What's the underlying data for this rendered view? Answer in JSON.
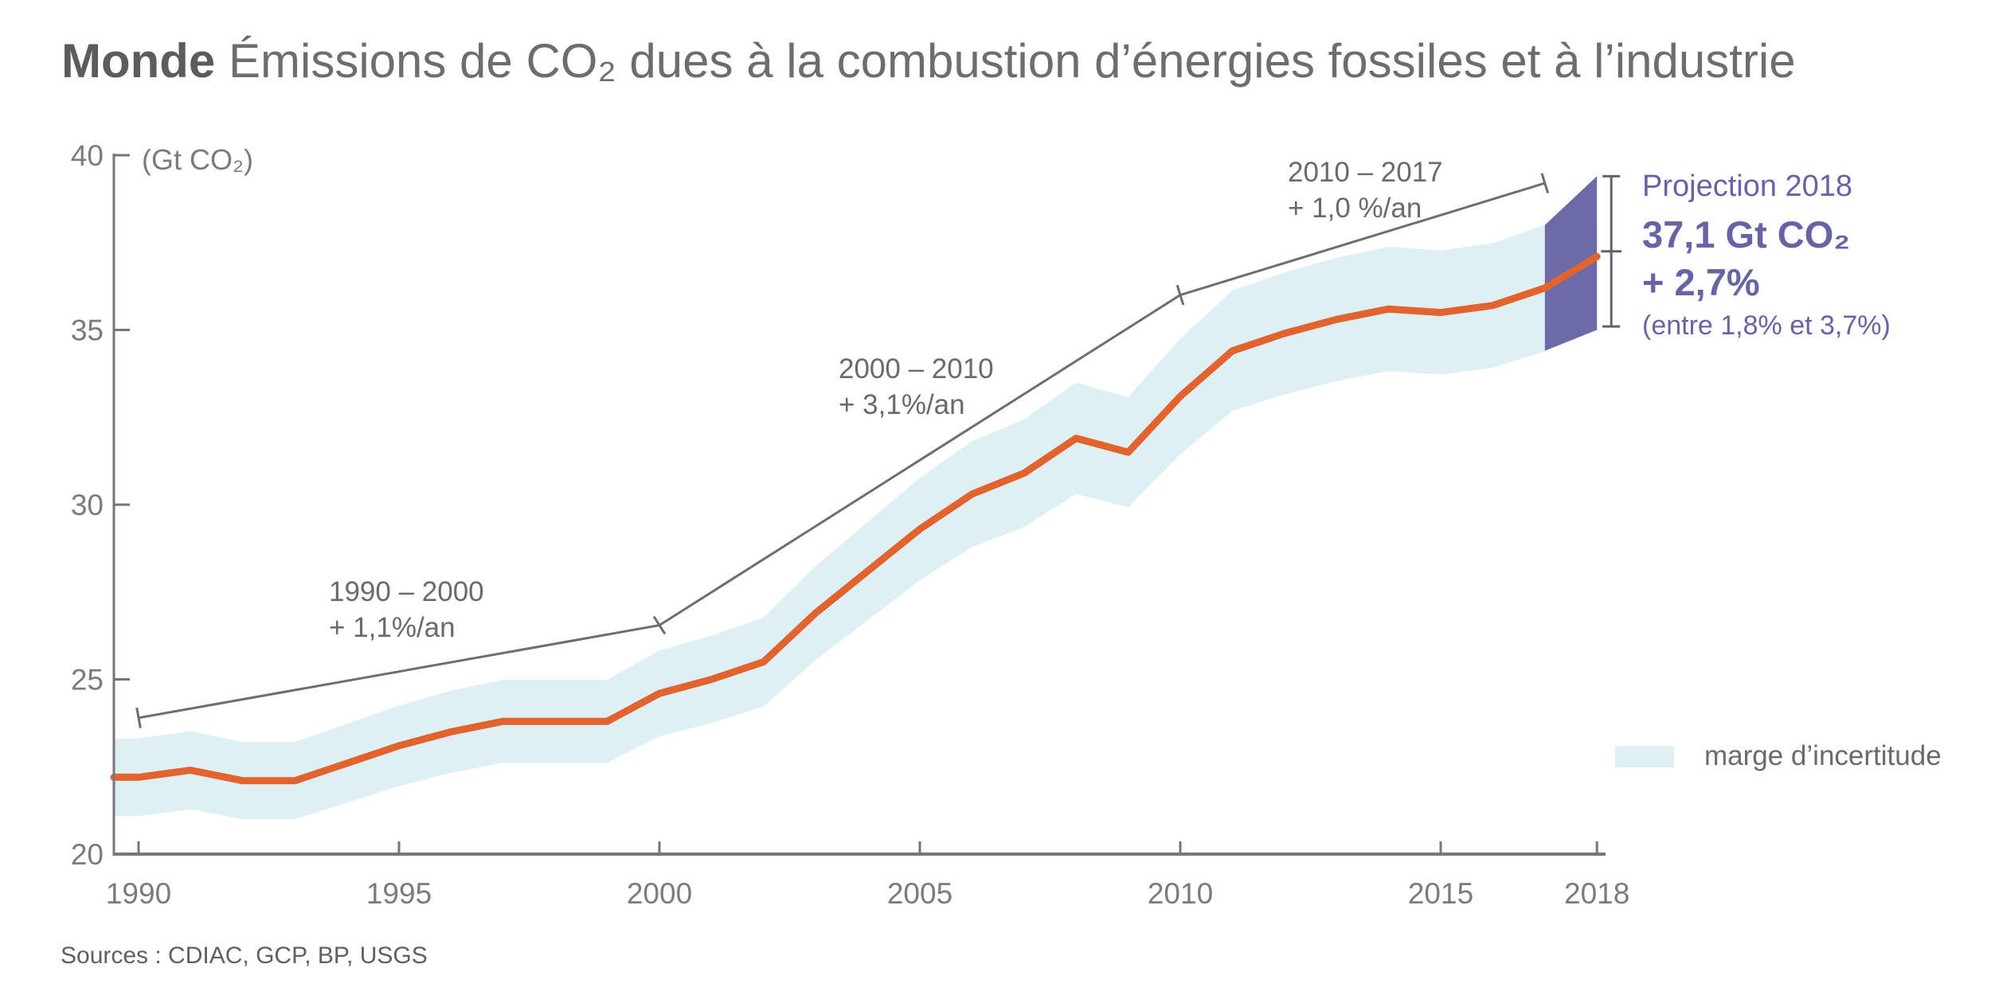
{
  "title": {
    "prefix": "Monde",
    "text": "Émissions de CO₂ dues à la combustion d’énergies fossiles et à l’industrie"
  },
  "axis_unit_label": "(Gt CO₂)",
  "sources": "Sources : CDIAC, GCP, BP, USGS",
  "legend": {
    "uncertainty_label": "marge d’incertitude"
  },
  "projection_callout": {
    "line1": "Projection 2018",
    "line2": "37,1 Gt CO₂",
    "line3": "+ 2,7%",
    "line4": "(entre 1,8% et 3,7%)"
  },
  "annotations": [
    {
      "line1": "1990 – 2000",
      "line2": "+ 1,1%/an"
    },
    {
      "line1": "2000 – 2010",
      "line2": "+ 3,1%/an"
    },
    {
      "line1": "2010 – 2017",
      "line2": "+ 1,0 %/an"
    }
  ],
  "colors": {
    "emissions_line": "#E2632D",
    "uncertainty_band": "#DFF0F5",
    "projection_band": "#6D6AA8",
    "projection_text": "#6664A5",
    "trend_line": "#6E6E6E",
    "axis": "#767676",
    "tick_label": "#7B7B7B",
    "annotation_text": "#6A6A6A",
    "title_bold": "#5C5C5C",
    "title_regular": "#6D6D6D",
    "sources_text": "#606060",
    "error_bar": "#63636A"
  },
  "chart_data": {
    "type": "line",
    "title": "Monde — Émissions de CO₂ dues à la combustion d’énergies fossiles et à l’industrie",
    "xlabel": "",
    "ylabel": "Gt CO₂",
    "xlim": [
      1989.5,
      2018
    ],
    "ylim": [
      20,
      40
    ],
    "yticks": [
      20,
      25,
      30,
      35,
      40
    ],
    "xticks": [
      1990,
      1995,
      2000,
      2005,
      2010,
      2015,
      2018
    ],
    "grid": false,
    "legend_position": "right",
    "x": [
      1990,
      1991,
      1992,
      1993,
      1994,
      1995,
      1996,
      1997,
      1998,
      1999,
      2000,
      2001,
      2002,
      2003,
      2004,
      2005,
      2006,
      2007,
      2008,
      2009,
      2010,
      2011,
      2012,
      2013,
      2014,
      2015,
      2016,
      2017,
      2018
    ],
    "series": [
      {
        "name": "Émissions mondiales de CO₂ (Gt CO₂)",
        "values": [
          22.2,
          22.4,
          22.1,
          22.1,
          22.6,
          23.1,
          23.5,
          23.8,
          23.8,
          23.8,
          24.6,
          25.0,
          25.5,
          26.9,
          28.1,
          29.3,
          30.3,
          30.9,
          31.9,
          31.5,
          33.1,
          34.4,
          34.9,
          35.3,
          35.6,
          35.5,
          35.7,
          36.2,
          37.1
        ]
      }
    ],
    "uncertainty_pct": 5,
    "uncertainty_last_year": 2017,
    "growth_periods": [
      {
        "from": 1990,
        "to": 2000,
        "rate_label": "+ 1,1%/an"
      },
      {
        "from": 2000,
        "to": 2010,
        "rate_label": "+ 3,1%/an"
      },
      {
        "from": 2010,
        "to": 2017,
        "rate_label": "+ 1,0 %/an"
      }
    ],
    "trend_line_points": [
      [
        1990,
        23.9
      ],
      [
        2000,
        26.55
      ],
      [
        2010,
        36.0
      ],
      [
        2017,
        39.2
      ]
    ],
    "projection": {
      "year": 2018,
      "value": 37.1,
      "growth_pct": 2.7,
      "growth_range_pct": [
        1.8,
        3.7
      ],
      "band": {
        "x": [
          2017,
          2018
        ],
        "upper": [
          38.0,
          39.4
        ],
        "lower": [
          34.4,
          35.0
        ]
      },
      "errorbar": {
        "top": 39.4,
        "bottom": 35.1
      }
    }
  }
}
